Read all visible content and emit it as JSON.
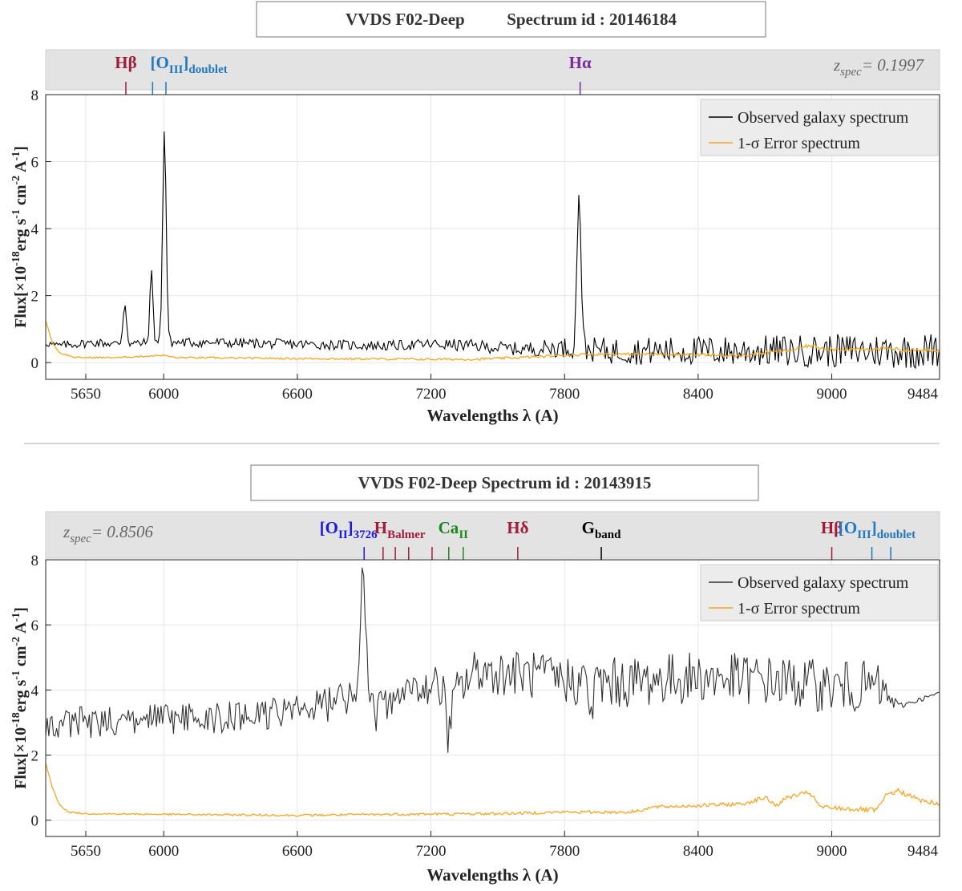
{
  "chart_data": [
    {
      "type": "line",
      "title": "VVDS F02-Deep          Spectrum id : 20146184",
      "xlabel": "Wavelengths λ (A)",
      "ylabel_main": "Flux[×10",
      "ylabel_sup1": "-18",
      "ylabel_mid1": "erg s",
      "ylabel_sup2": "-1",
      "ylabel_mid2": " cm",
      "ylabel_sup3": "-2",
      "ylabel_mid3": " A",
      "ylabel_sup4": "-1",
      "ylabel_end": "]",
      "xlim": [
        5470,
        9484
      ],
      "ylim": [
        -0.5,
        8
      ],
      "xticks": [
        5650,
        6000,
        6600,
        7200,
        7800,
        8400,
        9000,
        9484
      ],
      "yticks": [
        0,
        2,
        4,
        6,
        8
      ],
      "grid": true,
      "legend_position": "top-right",
      "redshift": {
        "symbol": "z",
        "sub": "spec",
        "value": "= 0.1997",
        "position": "right"
      },
      "line_markers": [
        {
          "label": "Hβ",
          "sub": "",
          "color": "#a01c3c",
          "ticks": [
            5830
          ],
          "label_x": 5830
        },
        {
          "label": "[O",
          "sub": "III",
          "suffix": "]",
          "sub2": "doublet",
          "color": "#1f78c0",
          "ticks": [
            5950,
            6010
          ],
          "label_x": 5940,
          "align": "start"
        },
        {
          "label": "Hα",
          "sub": "",
          "color": "#7a2d9a",
          "ticks": [
            7870
          ],
          "label_x": 7870
        }
      ],
      "series": [
        {
          "name": "Observed galaxy spectrum",
          "color": "#000000",
          "baseline": [
            [
              5470,
              0.6
            ],
            [
              5520,
              0.5
            ],
            [
              5600,
              0.55
            ],
            [
              5700,
              0.6
            ],
            [
              5800,
              0.55
            ],
            [
              6000,
              0.6
            ],
            [
              6200,
              0.6
            ],
            [
              6600,
              0.55
            ],
            [
              7000,
              0.5
            ],
            [
              7200,
              0.55
            ],
            [
              7400,
              0.5
            ],
            [
              7600,
              0.4
            ],
            [
              7800,
              0.45
            ],
            [
              8000,
              0.35
            ],
            [
              8300,
              0.35
            ],
            [
              8600,
              0.35
            ],
            [
              9000,
              0.35
            ],
            [
              9300,
              0.35
            ],
            [
              9484,
              0.35
            ]
          ],
          "noise": [
            [
              5470,
              0.12
            ],
            [
              6000,
              0.15
            ],
            [
              7000,
              0.15
            ],
            [
              7600,
              0.2
            ],
            [
              8000,
              0.4
            ],
            [
              9000,
              0.5
            ],
            [
              9484,
              0.55
            ]
          ],
          "peaks": [
            [
              5825,
              1.2,
              8
            ],
            [
              5945,
              2.1,
              7
            ],
            [
              6003,
              6.35,
              8
            ],
            [
              7865,
              4.75,
              9
            ]
          ]
        },
        {
          "name": "1-σ Error spectrum",
          "color": "#f5a623",
          "baseline": [
            [
              5470,
              1.25
            ],
            [
              5500,
              0.6
            ],
            [
              5530,
              0.3
            ],
            [
              5600,
              0.15
            ],
            [
              5800,
              0.15
            ],
            [
              6000,
              0.22
            ],
            [
              6050,
              0.15
            ],
            [
              6600,
              0.12
            ],
            [
              7200,
              0.1
            ],
            [
              7400,
              0.1
            ],
            [
              7600,
              0.15
            ],
            [
              7900,
              0.25
            ],
            [
              8300,
              0.25
            ],
            [
              8600,
              0.2
            ],
            [
              8700,
              0.3
            ],
            [
              8900,
              0.4
            ],
            [
              9000,
              0.4
            ],
            [
              9484,
              0.35
            ]
          ],
          "noise": [
            [
              5470,
              0.02
            ],
            [
              8000,
              0.04
            ],
            [
              9484,
              0.06
            ]
          ],
          "peaks": [
            [
              8900,
              0.1,
              40
            ],
            [
              9250,
              0.08,
              30
            ]
          ]
        }
      ]
    },
    {
      "type": "line",
      "title": "VVDS F02-Deep Spectrum id : 20143915",
      "xlabel": "Wavelengths λ (A)",
      "ylabel_main": "Flux[×10",
      "ylabel_sup1": "-18",
      "ylabel_mid1": "erg s",
      "ylabel_sup2": "-1",
      "ylabel_mid2": " cm",
      "ylabel_sup3": "-2",
      "ylabel_mid3": " A",
      "ylabel_sup4": "-1",
      "ylabel_end": "]",
      "xlim": [
        5470,
        9484
      ],
      "ylim": [
        -0.5,
        8
      ],
      "xticks": [
        5650,
        6000,
        6600,
        7200,
        7800,
        8400,
        9000,
        9484
      ],
      "yticks": [
        0,
        2,
        4,
        6,
        8
      ],
      "grid": true,
      "legend_position": "top-right",
      "redshift": {
        "symbol": "z",
        "sub": "spec",
        "value": "= 0.8506",
        "position": "left"
      },
      "line_markers": [
        {
          "label": "[O",
          "sub": "II",
          "suffix": "]",
          "sub2": "3726",
          "color": "#1a1ae0",
          "ticks": [
            6900
          ],
          "label_x": 6700,
          "align": "start"
        },
        {
          "label": "H",
          "sub": "Balmer",
          "color": "#a01c3c",
          "ticks": [
            6985,
            7040,
            7100,
            7205
          ],
          "label_x": 7060
        },
        {
          "label": "Ca",
          "sub": "II",
          "color": "#1a8a1a",
          "ticks": [
            7280,
            7345
          ],
          "label_x": 7300
        },
        {
          "label": "Hδ",
          "sub": "",
          "color": "#a01c3c",
          "ticks": [
            7590
          ],
          "label_x": 7590
        },
        {
          "label": "G",
          "sub": "band",
          "color": "#000000",
          "ticks": [
            7965
          ],
          "label_x": 7965
        },
        {
          "label": "Hβ",
          "sub": "",
          "color": "#a01c3c",
          "ticks": [
            9000
          ],
          "label_x": 9000
        },
        {
          "label": "[O",
          "sub": "III",
          "suffix": "]",
          "sub2": "doublet",
          "color": "#1f78c0",
          "ticks": [
            9180,
            9265
          ],
          "label_x": 9030,
          "align": "start"
        }
      ],
      "series": [
        {
          "name": "Observed galaxy spectrum",
          "color": "#333333",
          "baseline": [
            [
              5470,
              2.9
            ],
            [
              5600,
              3.0
            ],
            [
              6000,
              3.1
            ],
            [
              6400,
              3.2
            ],
            [
              6700,
              3.5
            ],
            [
              6850,
              3.8
            ],
            [
              6950,
              3.3
            ],
            [
              7100,
              3.9
            ],
            [
              7200,
              4.2
            ],
            [
              7300,
              3.8
            ],
            [
              7400,
              4.6
            ],
            [
              7600,
              4.5
            ],
            [
              7800,
              4.3
            ],
            [
              8000,
              4.2
            ],
            [
              8400,
              4.4
            ],
            [
              8700,
              4.3
            ],
            [
              9000,
              4.1
            ],
            [
              9200,
              4.1
            ],
            [
              9300,
              3.5
            ],
            [
              9484,
              3.9
            ]
          ],
          "noise": [
            [
              5470,
              0.5
            ],
            [
              6500,
              0.5
            ],
            [
              7000,
              0.6
            ],
            [
              8000,
              0.8
            ],
            [
              9200,
              0.8
            ],
            [
              9300,
              0.1
            ],
            [
              9484,
              0.05
            ]
          ],
          "peaks": [
            [
              6895,
              3.9,
              14
            ],
            [
              7280,
              -1.3,
              10
            ],
            [
              7920,
              -0.9,
              10
            ]
          ]
        },
        {
          "name": "1-σ Error spectrum",
          "color": "#f5a623",
          "baseline": [
            [
              5470,
              1.75
            ],
            [
              5500,
              1.0
            ],
            [
              5530,
              0.5
            ],
            [
              5570,
              0.25
            ],
            [
              5650,
              0.2
            ],
            [
              6000,
              0.18
            ],
            [
              6600,
              0.15
            ],
            [
              7000,
              0.18
            ],
            [
              7500,
              0.2
            ],
            [
              7800,
              0.25
            ],
            [
              8100,
              0.25
            ],
            [
              8200,
              0.4
            ],
            [
              8400,
              0.45
            ],
            [
              8600,
              0.5
            ],
            [
              8700,
              0.7
            ],
            [
              8750,
              0.45
            ],
            [
              8800,
              0.7
            ],
            [
              8900,
              0.85
            ],
            [
              8950,
              0.4
            ],
            [
              9200,
              0.3
            ],
            [
              9250,
              0.8
            ],
            [
              9300,
              0.9
            ],
            [
              9400,
              0.6
            ],
            [
              9484,
              0.5
            ]
          ],
          "noise": [
            [
              5470,
              0.02
            ],
            [
              8000,
              0.05
            ],
            [
              9484,
              0.08
            ]
          ],
          "peaks": []
        }
      ]
    }
  ]
}
